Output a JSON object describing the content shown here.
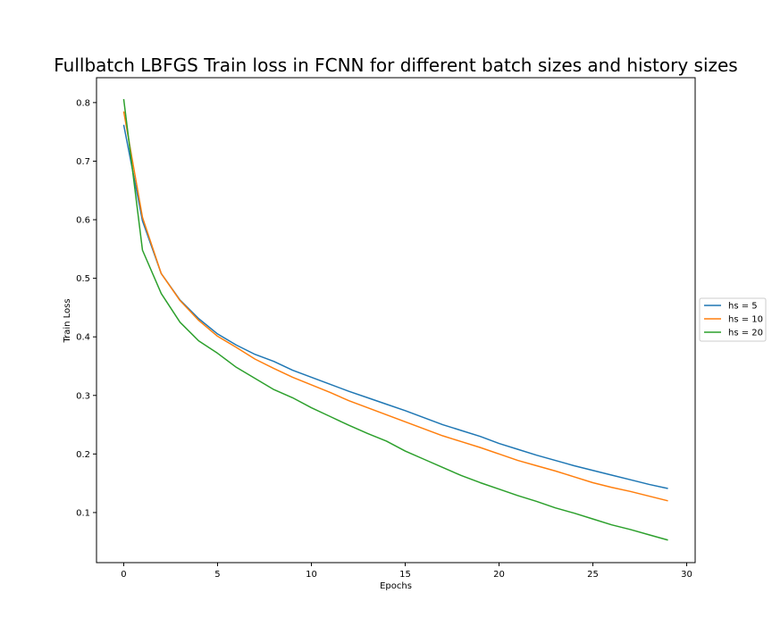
{
  "chart_data": {
    "type": "line",
    "title": "Fullbatch LBFGS Train loss in FCNN for different batch sizes and history sizes",
    "xlabel": "Epochs",
    "ylabel": "Train Loss",
    "xlim": [
      -1.45,
      30.45
    ],
    "ylim": [
      0.0145,
      0.8425
    ],
    "xticks": [
      0,
      5,
      10,
      15,
      20,
      25,
      30
    ],
    "yticks": [
      0.1,
      0.2,
      0.3,
      0.4,
      0.5,
      0.6,
      0.7,
      0.8
    ],
    "grid": false,
    "legend_placement": "center-right-outside",
    "x": [
      0,
      1,
      2,
      3,
      4,
      5,
      6,
      7,
      8,
      9,
      10,
      11,
      12,
      13,
      14,
      15,
      16,
      17,
      18,
      19,
      20,
      21,
      22,
      23,
      24,
      25,
      26,
      27,
      28,
      29
    ],
    "series": [
      {
        "name": "hs = 5",
        "color": "#1f77b4",
        "values": [
          0.762,
          0.598,
          0.508,
          0.463,
          0.431,
          0.405,
          0.386,
          0.37,
          0.358,
          0.343,
          0.331,
          0.319,
          0.307,
          0.296,
          0.285,
          0.274,
          0.262,
          0.25,
          0.24,
          0.23,
          0.218,
          0.208,
          0.198,
          0.189,
          0.18,
          0.172,
          0.164,
          0.156,
          0.148,
          0.141
        ]
      },
      {
        "name": "hs = 10",
        "color": "#ff7f0e",
        "values": [
          0.785,
          0.604,
          0.508,
          0.462,
          0.428,
          0.401,
          0.382,
          0.362,
          0.346,
          0.331,
          0.318,
          0.305,
          0.291,
          0.279,
          0.267,
          0.255,
          0.243,
          0.231,
          0.221,
          0.211,
          0.2,
          0.189,
          0.18,
          0.171,
          0.161,
          0.151,
          0.143,
          0.136,
          0.128,
          0.12
        ]
      },
      {
        "name": "hs = 20",
        "color": "#2ca02c",
        "values": [
          0.806,
          0.548,
          0.474,
          0.425,
          0.393,
          0.372,
          0.348,
          0.329,
          0.31,
          0.296,
          0.279,
          0.264,
          0.249,
          0.235,
          0.222,
          0.205,
          0.191,
          0.177,
          0.163,
          0.151,
          0.14,
          0.129,
          0.119,
          0.108,
          0.099,
          0.089,
          0.079,
          0.071,
          0.062,
          0.053
        ]
      }
    ]
  }
}
